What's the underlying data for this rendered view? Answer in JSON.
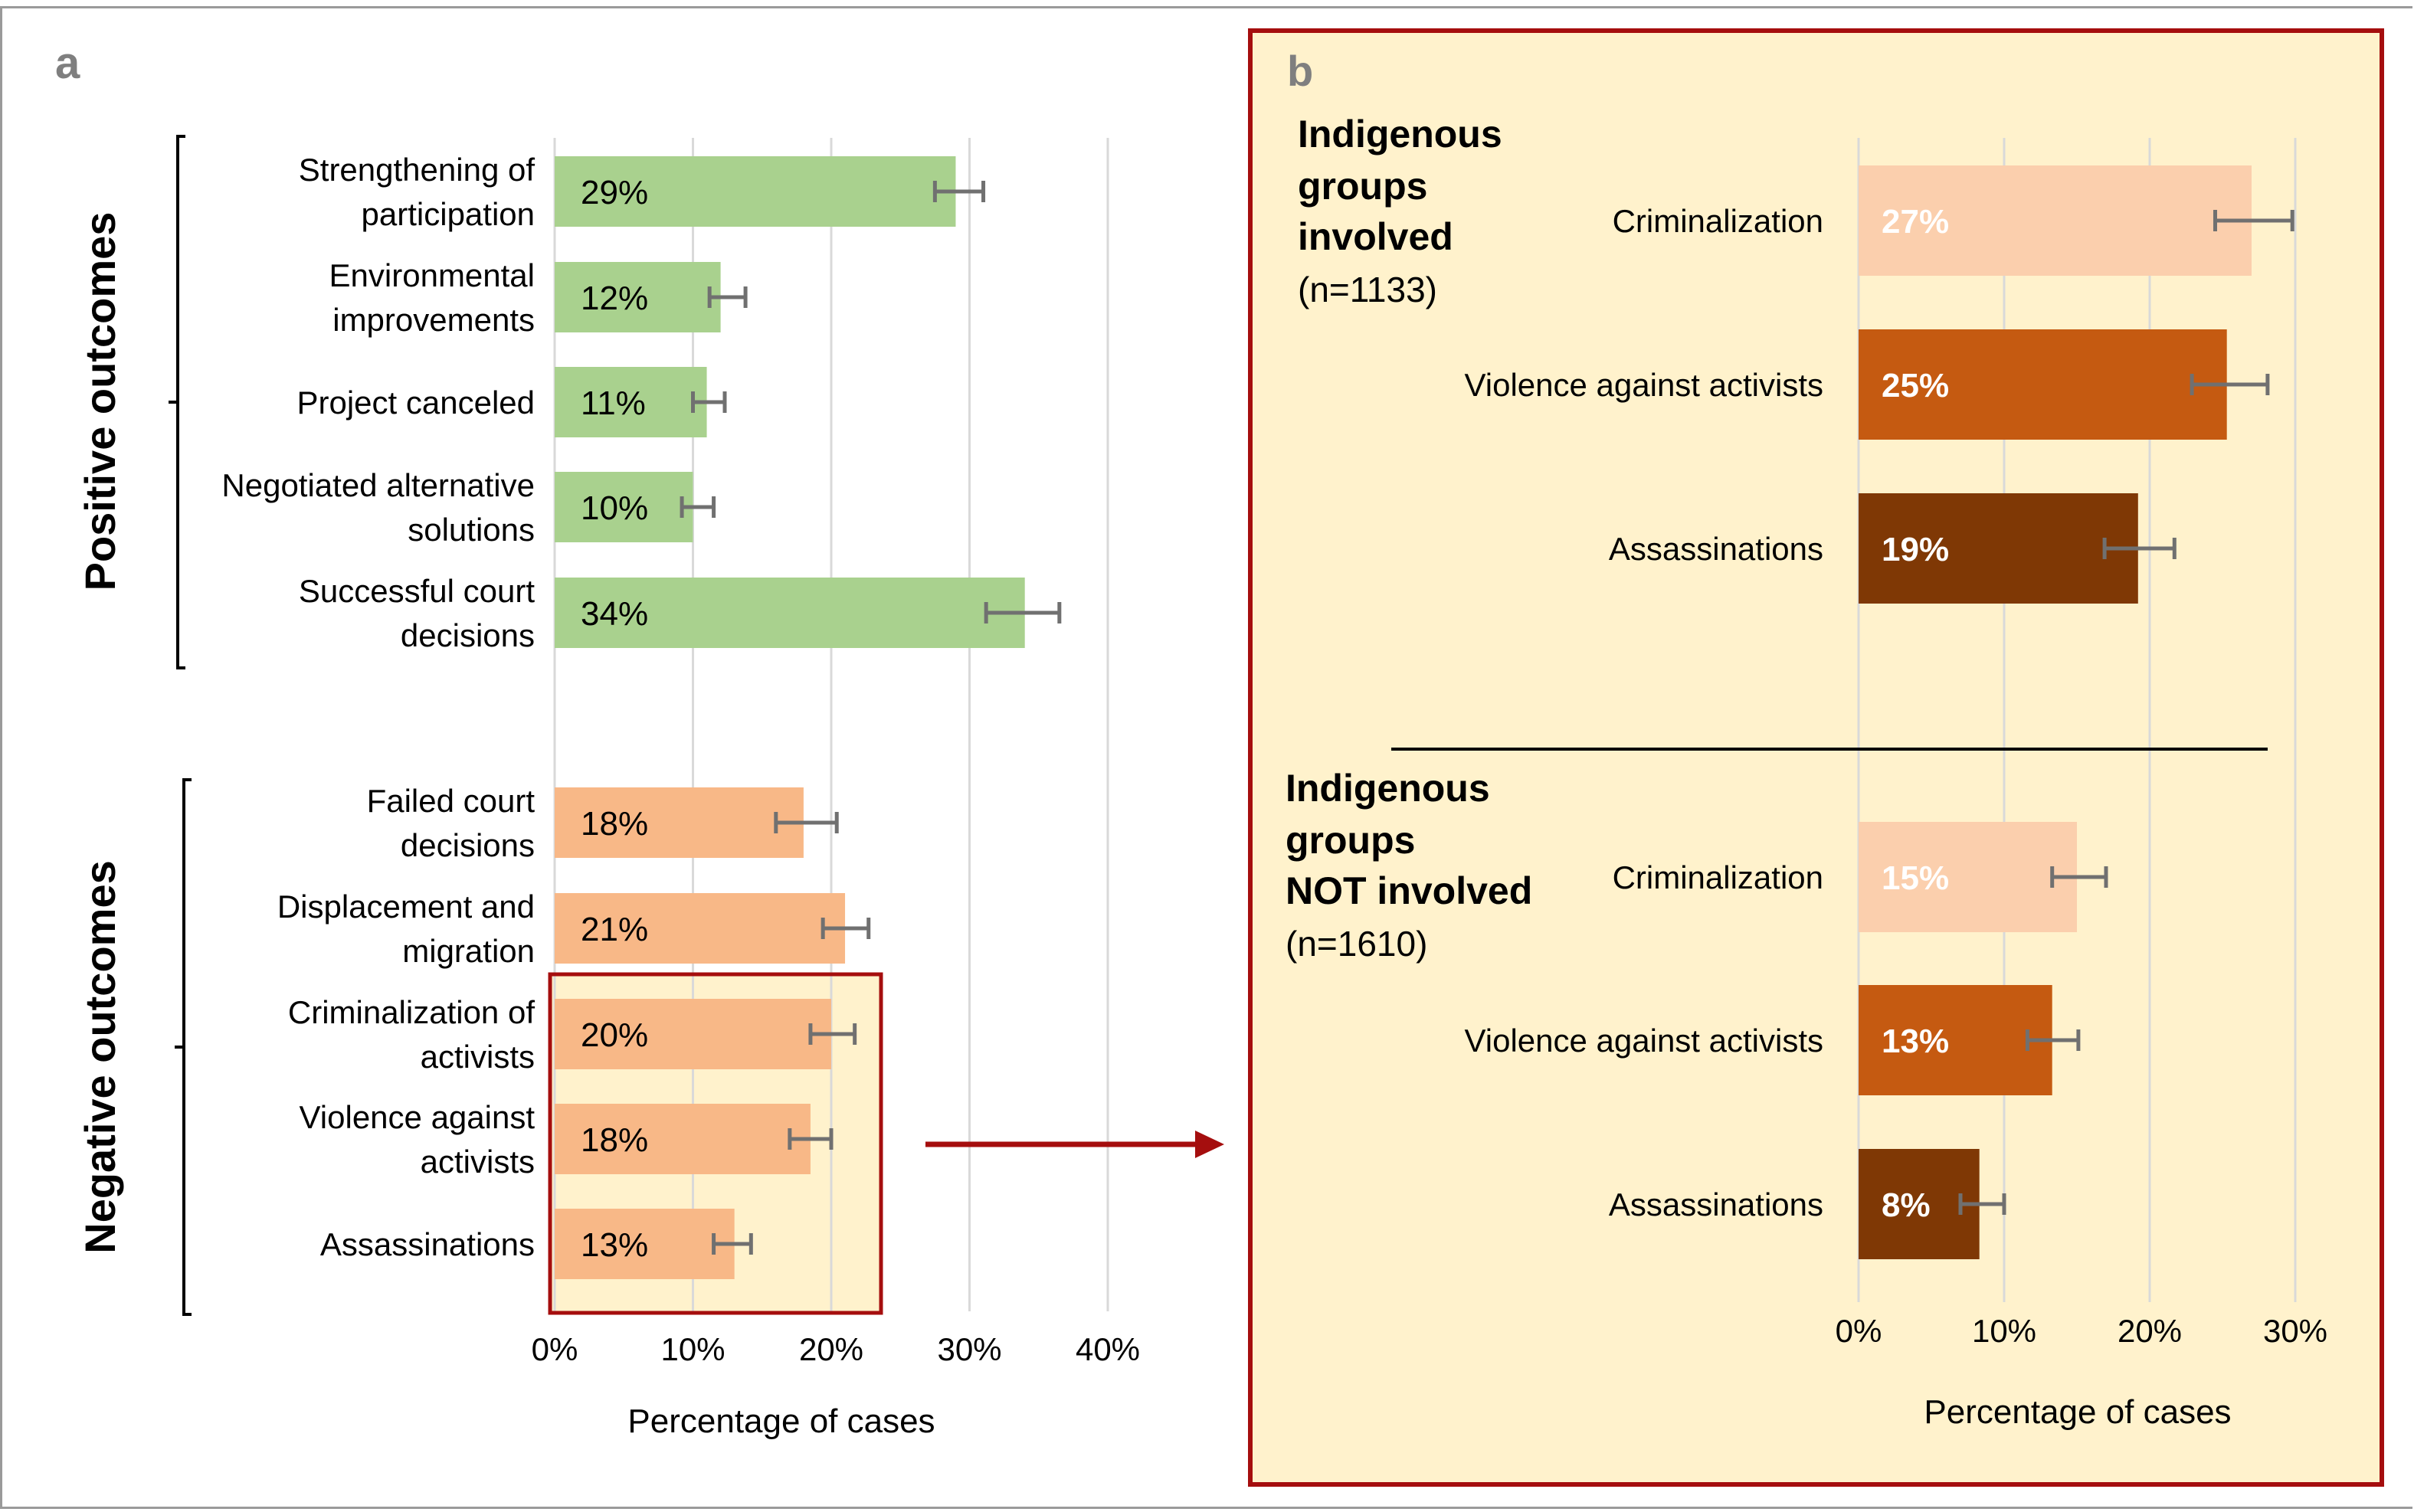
{
  "panel_labels": {
    "a": "a",
    "b": "b"
  },
  "colors": {
    "positive": "#a9d18e",
    "negative": "#f8b887",
    "highlight_bg": "#fff2cc",
    "highlight_border": "#a50e0e",
    "crim": "#fbcfad",
    "viol": "#c55a11",
    "assa": "#7f3805",
    "errorbar": "#707070",
    "grid": "#d9d9d9",
    "panel_label": "#7f7f7f"
  },
  "chart_data": [
    {
      "type": "bar",
      "orientation": "horizontal",
      "title": "a",
      "xlabel": "Percentage of cases",
      "xlim": [
        0,
        40
      ],
      "xticks": [
        "0%",
        "10%",
        "20%",
        "30%",
        "40%"
      ],
      "grid": true,
      "groups": [
        {
          "name": "Positive outcomes",
          "categories": [
            "Strengthening of participation",
            "Environmental improvements",
            "Project canceled",
            "Negotiated alternative solutions",
            "Successful court decisions"
          ],
          "label_lines": [
            [
              "Strengthening of",
              "participation"
            ],
            [
              "Environmental",
              "improvements"
            ],
            [
              "Project canceled"
            ],
            [
              "Negotiated alternative",
              "solutions"
            ],
            [
              "Successful court",
              "decisions"
            ]
          ],
          "values": [
            29,
            12,
            11,
            10,
            34
          ],
          "value_labels": [
            "29%",
            "12%",
            "11%",
            "10%",
            "34%"
          ],
          "error_low": [
            27.5,
            11.2,
            10.0,
            9.2,
            31.2
          ],
          "error_high": [
            31.0,
            13.8,
            12.3,
            11.5,
            36.5
          ]
        },
        {
          "name": "Negative outcomes",
          "categories": [
            "Failed court decisions",
            "Displacement and migration",
            "Criminalization of activists",
            "Violence against activists",
            "Assassinations"
          ],
          "label_lines": [
            [
              "Failed court",
              "decisions"
            ],
            [
              "Displacement and",
              "migration"
            ],
            [
              "Criminalization of",
              "activists"
            ],
            [
              "Violence against",
              "activists"
            ],
            [
              "Assassinations"
            ]
          ],
          "values": [
            18,
            21,
            20,
            18.5,
            13
          ],
          "value_labels": [
            "18%",
            "21%",
            "20%",
            "18%",
            "13%"
          ],
          "error_low": [
            16.0,
            19.4,
            18.5,
            17.0,
            11.5
          ],
          "error_high": [
            20.4,
            22.7,
            21.7,
            20.0,
            14.2
          ]
        }
      ],
      "highlighted": [
        "Criminalization of activists",
        "Violence against activists",
        "Assassinations"
      ]
    },
    {
      "type": "bar",
      "orientation": "horizontal",
      "title": "b",
      "xlabel": "Percentage of cases",
      "xlim": [
        0,
        30
      ],
      "xticks": [
        "0%",
        "10%",
        "20%",
        "30%"
      ],
      "grid": true,
      "groups": [
        {
          "name_lines": [
            "Indigenous",
            "groups",
            "involved"
          ],
          "n_label": "(n=1133)",
          "categories": [
            "Criminalization",
            "Violence against activists",
            "Assassinations"
          ],
          "values": [
            27,
            25.3,
            19.2
          ],
          "value_labels": [
            "27%",
            "25%",
            "19%"
          ],
          "error_low": [
            24.5,
            22.9,
            16.9
          ],
          "error_high": [
            29.8,
            28.1,
            21.7
          ]
        },
        {
          "name_lines": [
            "Indigenous",
            "groups",
            "NOT involved"
          ],
          "n_label": "(n=1610)",
          "categories": [
            "Criminalization",
            "Violence against activists",
            "Assassinations"
          ],
          "values": [
            15,
            13.3,
            8.3
          ],
          "value_labels": [
            "15%",
            "13%",
            "8%"
          ],
          "error_low": [
            13.3,
            11.6,
            7.0
          ],
          "error_high": [
            17.0,
            15.1,
            10.0
          ]
        }
      ]
    }
  ]
}
